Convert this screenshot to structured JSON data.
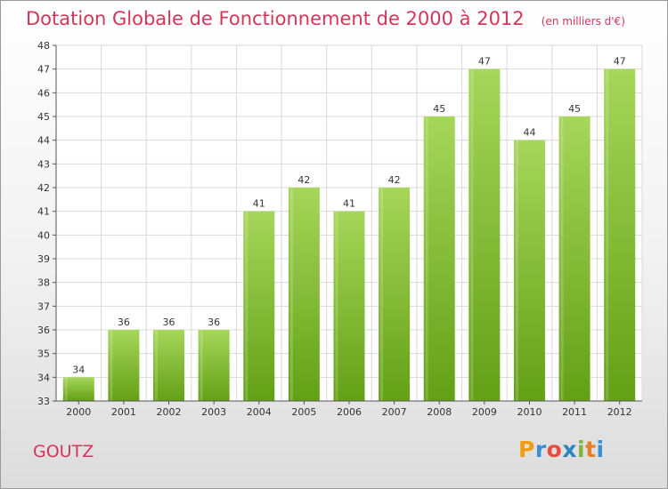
{
  "title": "Dotation Globale de Fonctionnement de 2000 à 2012",
  "subtitle": "(en milliers d'€)",
  "commune": "GOUTZ",
  "logo": {
    "letters": [
      "P",
      "r",
      "o",
      "x",
      "i",
      "t",
      "i"
    ],
    "colors": [
      "#f39c12",
      "#3a8fd1",
      "#e74c3c",
      "#2e86c1",
      "#7cb342",
      "#e67e22",
      "#3a8fd1"
    ]
  },
  "colors": {
    "accent": "#d4365a",
    "bar_light": "#a6d65a",
    "bar_dark": "#63a016",
    "grid": "#d8d8d8",
    "axis_text": "#333333"
  },
  "chart_data": {
    "type": "bar",
    "categories": [
      "2000",
      "2001",
      "2002",
      "2003",
      "2004",
      "2005",
      "2006",
      "2007",
      "2008",
      "2009",
      "2010",
      "2011",
      "2012"
    ],
    "values": [
      34,
      36,
      36,
      36,
      41,
      42,
      41,
      42,
      45,
      47,
      44,
      45,
      47
    ],
    "data_labels": [
      "34",
      "36",
      "36",
      "36",
      "41",
      "42",
      "41",
      "42",
      "45",
      "47",
      "44",
      "45",
      "47"
    ],
    "yticks": [
      "33",
      "34",
      "35",
      "36",
      "37",
      "38",
      "39",
      "40",
      "41",
      "42",
      "43",
      "44",
      "45",
      "46",
      "47",
      "48"
    ],
    "ylim": [
      33,
      48
    ],
    "grid": true
  }
}
